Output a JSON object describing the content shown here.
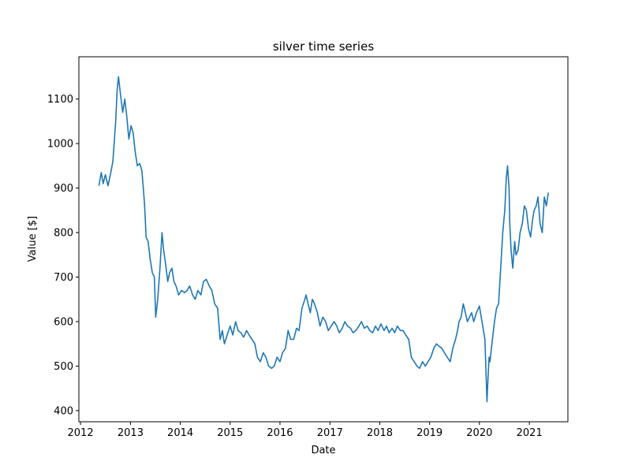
{
  "chart_data": {
    "type": "line",
    "title": "silver time series",
    "xlabel": "Date",
    "ylabel": "Value [$]",
    "xlim": [
      "2011-12-20",
      "2021-10-10"
    ],
    "ylim": [
      375,
      1195
    ],
    "x_ticks": [
      {
        "date": "2012-01-01",
        "label": "2012"
      },
      {
        "date": "2013-01-01",
        "label": "2013"
      },
      {
        "date": "2014-01-01",
        "label": "2014"
      },
      {
        "date": "2015-01-01",
        "label": "2015"
      },
      {
        "date": "2016-01-01",
        "label": "2016"
      },
      {
        "date": "2017-01-01",
        "label": "2017"
      },
      {
        "date": "2018-01-01",
        "label": "2018"
      },
      {
        "date": "2019-01-01",
        "label": "2019"
      },
      {
        "date": "2020-01-01",
        "label": "2020"
      },
      {
        "date": "2021-01-01",
        "label": "2021"
      }
    ],
    "y_ticks": [
      {
        "value": 400,
        "label": "400"
      },
      {
        "value": 500,
        "label": "500"
      },
      {
        "value": 600,
        "label": "600"
      },
      {
        "value": 700,
        "label": "700"
      },
      {
        "value": 800,
        "label": "800"
      },
      {
        "value": 900,
        "label": "900"
      },
      {
        "value": 1000,
        "label": "1000"
      },
      {
        "value": 1100,
        "label": "1100"
      }
    ],
    "grid": false,
    "line_color": "#1f77b4",
    "series": [
      {
        "x": [
          "2012-05-15",
          "2012-06-01",
          "2012-06-15",
          "2012-07-01",
          "2012-07-20",
          "2012-08-10",
          "2012-08-25",
          "2012-09-15",
          "2012-09-25",
          "2012-10-05",
          "2012-10-20",
          "2012-11-05",
          "2012-11-20",
          "2012-12-05",
          "2012-12-20",
          "2013-01-05",
          "2013-01-20",
          "2013-02-05",
          "2013-02-20",
          "2013-03-10",
          "2013-03-25",
          "2013-04-05",
          "2013-04-15",
          "2013-04-25",
          "2013-05-10",
          "2013-05-25",
          "2013-06-10",
          "2013-06-25",
          "2013-07-05",
          "2013-07-20",
          "2013-08-05",
          "2013-08-20",
          "2013-09-01",
          "2013-09-15",
          "2013-10-01",
          "2013-10-15",
          "2013-11-01",
          "2013-11-15",
          "2013-12-01",
          "2013-12-20",
          "2014-01-10",
          "2014-02-01",
          "2014-02-20",
          "2014-03-10",
          "2014-04-01",
          "2014-04-20",
          "2014-05-10",
          "2014-06-01",
          "2014-06-20",
          "2014-07-10",
          "2014-08-01",
          "2014-08-20",
          "2014-09-10",
          "2014-10-01",
          "2014-10-20",
          "2014-11-05",
          "2014-11-20",
          "2014-12-10",
          "2015-01-01",
          "2015-01-20",
          "2015-02-10",
          "2015-03-01",
          "2015-03-20",
          "2015-04-10",
          "2015-05-01",
          "2015-05-20",
          "2015-06-10",
          "2015-07-01",
          "2015-07-20",
          "2015-08-10",
          "2015-09-01",
          "2015-09-20",
          "2015-10-10",
          "2015-11-01",
          "2015-11-20",
          "2015-12-10",
          "2016-01-01",
          "2016-01-20",
          "2016-02-10",
          "2016-03-01",
          "2016-03-20",
          "2016-04-10",
          "2016-05-01",
          "2016-05-20",
          "2016-06-10",
          "2016-07-01",
          "2016-07-10",
          "2016-07-25",
          "2016-08-10",
          "2016-08-25",
          "2016-09-10",
          "2016-10-01",
          "2016-10-20",
          "2016-11-10",
          "2016-12-01",
          "2016-12-20",
          "2017-01-10",
          "2017-02-01",
          "2017-02-20",
          "2017-03-10",
          "2017-04-01",
          "2017-04-20",
          "2017-05-10",
          "2017-06-01",
          "2017-06-20",
          "2017-07-10",
          "2017-08-01",
          "2017-08-20",
          "2017-09-10",
          "2017-10-01",
          "2017-10-20",
          "2017-11-10",
          "2017-12-01",
          "2017-12-20",
          "2018-01-10",
          "2018-02-01",
          "2018-02-20",
          "2018-03-10",
          "2018-04-01",
          "2018-04-20",
          "2018-05-10",
          "2018-06-01",
          "2018-06-20",
          "2018-07-10",
          "2018-08-01",
          "2018-08-20",
          "2018-09-10",
          "2018-10-01",
          "2018-10-20",
          "2018-11-10",
          "2018-12-01",
          "2018-12-20",
          "2019-01-10",
          "2019-02-01",
          "2019-02-20",
          "2019-03-10",
          "2019-04-01",
          "2019-04-20",
          "2019-05-10",
          "2019-06-01",
          "2019-06-20",
          "2019-07-10",
          "2019-07-25",
          "2019-08-05",
          "2019-08-20",
          "2019-09-05",
          "2019-09-20",
          "2019-10-05",
          "2019-10-20",
          "2019-11-05",
          "2019-11-20",
          "2019-12-10",
          "2020-01-01",
          "2020-01-20",
          "2020-02-10",
          "2020-02-25",
          "2020-03-05",
          "2020-03-12",
          "2020-03-18",
          "2020-03-25",
          "2020-04-05",
          "2020-04-20",
          "2020-05-05",
          "2020-05-20",
          "2020-06-05",
          "2020-06-20",
          "2020-07-05",
          "2020-07-15",
          "2020-07-25",
          "2020-08-05",
          "2020-08-10",
          "2020-08-20",
          "2020-09-01",
          "2020-09-15",
          "2020-09-25",
          "2020-10-10",
          "2020-10-25",
          "2020-11-10",
          "2020-11-25",
          "2020-12-10",
          "2020-12-25",
          "2021-01-10",
          "2021-01-25",
          "2021-02-05",
          "2021-02-20",
          "2021-03-05",
          "2021-03-20",
          "2021-04-05",
          "2021-04-20",
          "2021-05-05",
          "2021-05-20"
        ],
        "y": [
          905,
          935,
          910,
          930,
          905,
          935,
          960,
          1050,
          1120,
          1150,
          1110,
          1070,
          1100,
          1060,
          1010,
          1040,
          1025,
          980,
          950,
          955,
          940,
          900,
          860,
          790,
          780,
          740,
          710,
          700,
          610,
          650,
          720,
          800,
          760,
          730,
          690,
          710,
          720,
          690,
          680,
          660,
          670,
          665,
          670,
          680,
          660,
          650,
          670,
          660,
          690,
          695,
          680,
          670,
          640,
          630,
          560,
          580,
          550,
          570,
          590,
          570,
          600,
          580,
          575,
          565,
          580,
          570,
          560,
          550,
          520,
          510,
          530,
          520,
          500,
          495,
          500,
          520,
          510,
          530,
          540,
          580,
          560,
          560,
          585,
          580,
          630,
          650,
          660,
          640,
          620,
          650,
          640,
          620,
          590,
          610,
          600,
          580,
          590,
          600,
          590,
          575,
          585,
          600,
          590,
          585,
          575,
          580,
          590,
          600,
          585,
          590,
          580,
          575,
          590,
          580,
          595,
          580,
          590,
          575,
          585,
          575,
          590,
          580,
          580,
          570,
          560,
          520,
          510,
          500,
          495,
          510,
          500,
          510,
          520,
          540,
          550,
          545,
          540,
          530,
          520,
          510,
          540,
          560,
          580,
          600,
          610,
          640,
          620,
          600,
          610,
          620,
          600,
          620,
          635,
          600,
          560,
          420,
          480,
          520,
          510,
          530,
          560,
          600,
          630,
          640,
          720,
          800,
          850,
          920,
          950,
          900,
          820,
          760,
          720,
          780,
          750,
          760,
          800,
          820,
          860,
          850,
          810,
          790,
          830,
          850,
          860,
          880,
          820,
          800,
          880,
          860,
          890
        ]
      }
    ]
  }
}
